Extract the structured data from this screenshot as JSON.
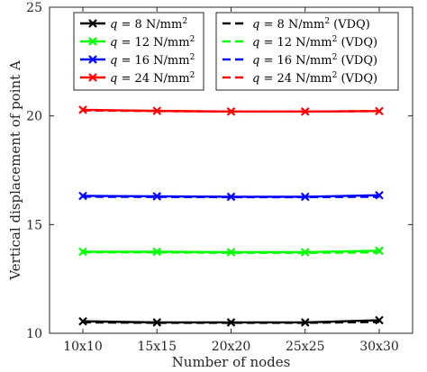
{
  "chart_data": {
    "type": "line",
    "xlabel": "Number of nodes",
    "ylabel": "Vertical displacement of point A",
    "categories": [
      "10x10",
      "15x15",
      "20x20",
      "25x25",
      "30x30"
    ],
    "ylim": [
      10,
      25
    ],
    "yticks": [
      10,
      15,
      20,
      25
    ],
    "grid": false,
    "legend_placement": "top",
    "series": [
      {
        "name": "q = 8 N/mm²",
        "color": "#000000",
        "style": "solid",
        "marker": "x",
        "values": [
          10.55,
          10.5,
          10.5,
          10.5,
          10.6
        ]
      },
      {
        "name": "q = 12 N/mm²",
        "color": "#00ff00",
        "style": "solid",
        "marker": "x",
        "values": [
          13.75,
          13.75,
          13.73,
          13.73,
          13.8
        ]
      },
      {
        "name": "q = 16 N/mm²",
        "color": "#0000ff",
        "style": "solid",
        "marker": "x",
        "values": [
          16.32,
          16.3,
          16.28,
          16.28,
          16.35
        ]
      },
      {
        "name": "q = 24 N/mm²",
        "color": "#ff0000",
        "style": "solid",
        "marker": "x",
        "values": [
          20.28,
          20.23,
          20.2,
          20.2,
          20.22
        ]
      },
      {
        "name": "q = 8 N/mm² (VDQ)",
        "color": "#000000",
        "style": "dashed",
        "marker": "none",
        "values": [
          10.5,
          10.48,
          10.48,
          10.48,
          10.52
        ]
      },
      {
        "name": "q = 12 N/mm² (VDQ)",
        "color": "#00ff00",
        "style": "dashed",
        "marker": "none",
        "values": [
          13.72,
          13.72,
          13.7,
          13.7,
          13.72
        ]
      },
      {
        "name": "q = 16 N/mm² (VDQ)",
        "color": "#0000ff",
        "style": "dashed",
        "marker": "none",
        "values": [
          16.28,
          16.27,
          16.26,
          16.26,
          16.28
        ]
      },
      {
        "name": "q = 24 N/mm² (VDQ)",
        "color": "#ff0000",
        "style": "dashed",
        "marker": "none",
        "values": [
          20.25,
          20.22,
          20.2,
          20.2,
          20.22
        ]
      }
    ],
    "legend": {
      "left": [
        {
          "prefix": "q",
          "rest": " = 8 N/mm",
          "sup": "2",
          "tail": ""
        },
        {
          "prefix": "q",
          "rest": " = 12 N/mm",
          "sup": "2",
          "tail": ""
        },
        {
          "prefix": "q",
          "rest": " = 16 N/mm",
          "sup": "2",
          "tail": ""
        },
        {
          "prefix": "q",
          "rest": " = 24 N/mm",
          "sup": "2",
          "tail": ""
        }
      ],
      "right": [
        {
          "prefix": "q",
          "rest": " = 8 N/mm",
          "sup": "2",
          "tail": " (VDQ)"
        },
        {
          "prefix": "q",
          "rest": " = 12 N/mm",
          "sup": "2",
          "tail": " (VDQ)"
        },
        {
          "prefix": "q",
          "rest": " = 16 N/mm",
          "sup": "2",
          "tail": " (VDQ)"
        },
        {
          "prefix": "q",
          "rest": " = 24 N/mm",
          "sup": "2",
          "tail": " (VDQ)"
        }
      ]
    }
  }
}
